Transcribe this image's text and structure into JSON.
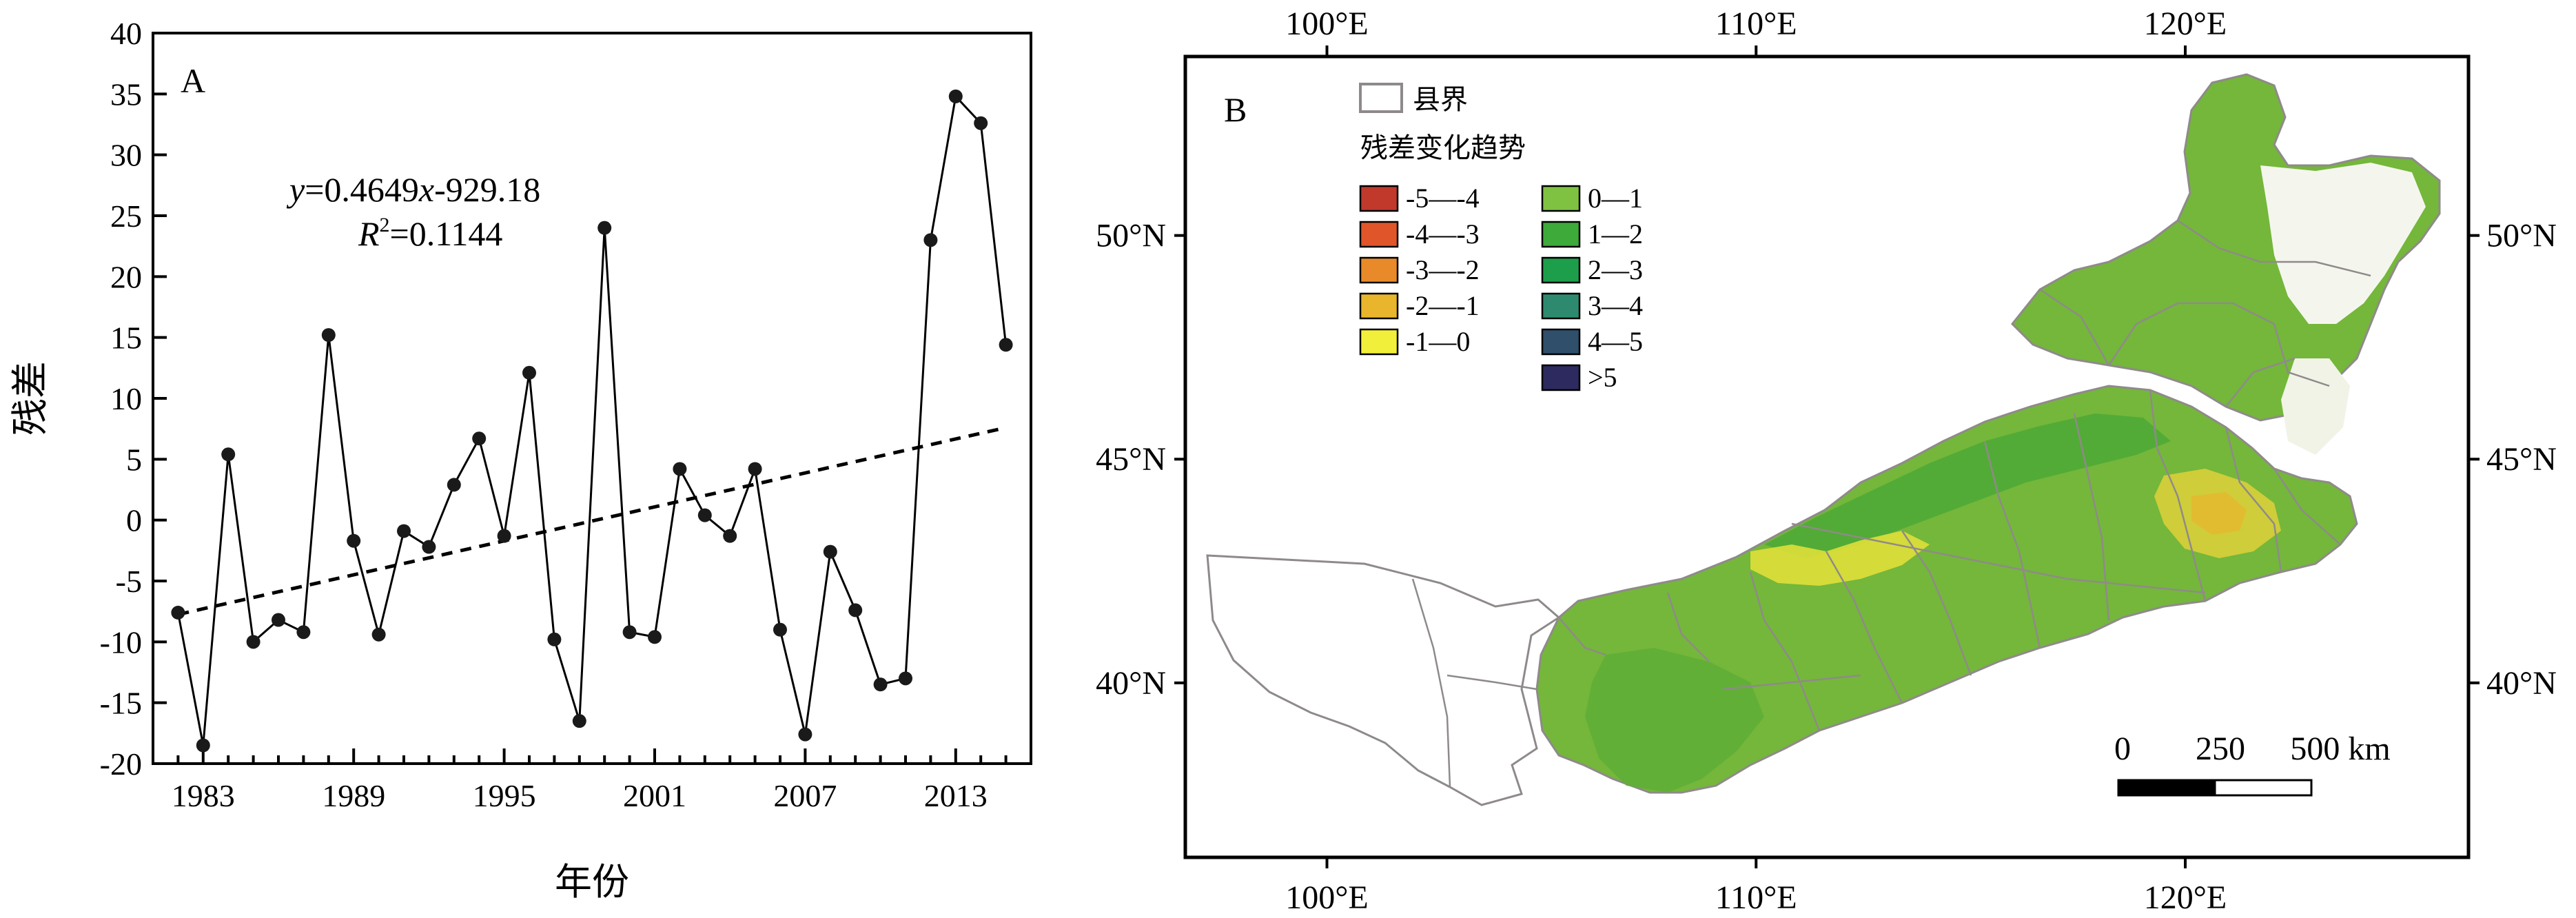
{
  "chart_data": [
    {
      "type": "line",
      "panel_label": "A",
      "xlabel": "年份",
      "ylabel": "残差",
      "xlim": [
        1981,
        2016
      ],
      "ylim": [
        -20,
        40
      ],
      "x_ticks": [
        1983,
        1989,
        1995,
        2001,
        2007,
        2013
      ],
      "y_ticks": [
        -20,
        -15,
        -10,
        -5,
        0,
        5,
        10,
        15,
        20,
        25,
        30,
        35,
        40
      ],
      "series": [
        {
          "x": [
            1982,
            1983,
            1984,
            1985,
            1986,
            1987,
            1988,
            1989,
            1990,
            1991,
            1992,
            1993,
            1994,
            1995,
            1996,
            1997,
            1998,
            1999,
            2000,
            2001,
            2002,
            2003,
            2004,
            2005,
            2006,
            2007,
            2008,
            2009,
            2010,
            2011,
            2012,
            2013,
            2014,
            2015
          ],
          "values": [
            -7.6,
            -18.5,
            5.4,
            -10.0,
            -8.2,
            -9.2,
            15.2,
            -1.7,
            -9.4,
            -0.9,
            -2.2,
            2.9,
            6.7,
            -1.3,
            12.1,
            -9.8,
            -16.5,
            24.0,
            -9.2,
            -9.6,
            4.2,
            0.4,
            -1.3,
            4.2,
            -9.0,
            -17.6,
            -2.6,
            -7.4,
            -13.5,
            -13.0,
            23.0,
            34.8,
            32.6,
            14.4
          ]
        }
      ],
      "trendline": {
        "style": "dashed",
        "x_range": [
          1982,
          2015
        ],
        "slope": 0.4649,
        "intercept": -929.18
      },
      "annotations": {
        "equation_y": "y",
        "equation_rest": "=0.4649",
        "equation_x": "x",
        "equation_tail": "-929.18",
        "r2_r": "R",
        "r2_sup": "2",
        "r2_value": "=0.1144"
      }
    },
    {
      "type": "map",
      "panel_label": "B",
      "x_tick_labels": [
        "100°E",
        "110°E",
        "120°E"
      ],
      "x_tick_values": [
        100,
        110,
        120
      ],
      "y_tick_labels": [
        "40°N",
        "45°N",
        "50°N"
      ],
      "y_tick_values": [
        40,
        45,
        50
      ],
      "xlim": [
        96.7,
        126.6
      ],
      "ylim": [
        36.1,
        54.0
      ],
      "legend": {
        "boundary_label": "县界",
        "title": "残差变化趋势",
        "entries": [
          {
            "label": "-5—-4",
            "color": "#c0392b"
          },
          {
            "label": "-4—-3",
            "color": "#e0562a"
          },
          {
            "label": "-3—-2",
            "color": "#e88a2a"
          },
          {
            "label": "-2—-1",
            "color": "#e8b52d"
          },
          {
            "label": "-1—0",
            "color": "#f2ef3a"
          },
          {
            "label": "0—1",
            "color": "#7fc241"
          },
          {
            "label": "1—2",
            "color": "#3daa3a"
          },
          {
            "label": "2—3",
            "color": "#1d9e4a"
          },
          {
            "label": "3—4",
            "color": "#2e8a6e"
          },
          {
            "label": "4—5",
            "color": "#2f4f6a"
          },
          {
            "label": ">5",
            "color": "#2c2a5e"
          }
        ]
      },
      "scalebar": {
        "labels": [
          "0",
          "250",
          "500 km"
        ]
      }
    }
  ],
  "colors": {
    "map_green": "#74b73a",
    "map_dark_green": "#3e9a34",
    "map_yellow": "#e6e23a",
    "boundary": "#8f8a8a"
  }
}
